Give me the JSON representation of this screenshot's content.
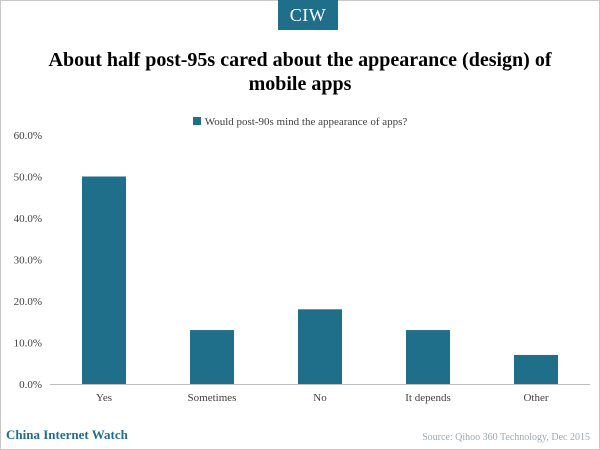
{
  "brand": {
    "logo_text": "CIW",
    "footer_site": "China Internet Watch"
  },
  "source_note": "Source: Qihoo 360 Technology, Dec 2015",
  "colors": {
    "bar": "#1f6f8b",
    "axis": "#bfbfbf",
    "tick_text": "#404040"
  },
  "chart_data": {
    "type": "bar",
    "title": "About half post-95s cared about the appearance (design) of mobile apps",
    "categories": [
      "Yes",
      "Sometimes",
      "No",
      "It depends",
      "Other"
    ],
    "series": [
      {
        "name": "Would post-90s mind the appearance of apps?",
        "values": [
          50.0,
          13.0,
          18.0,
          13.0,
          7.0
        ]
      }
    ],
    "y_ticks": [
      "0.0%",
      "10.0%",
      "20.0%",
      "30.0%",
      "40.0%",
      "50.0%",
      "60.0%"
    ],
    "ylim": [
      0,
      60
    ],
    "grid": false,
    "legend_position": "top-center"
  }
}
